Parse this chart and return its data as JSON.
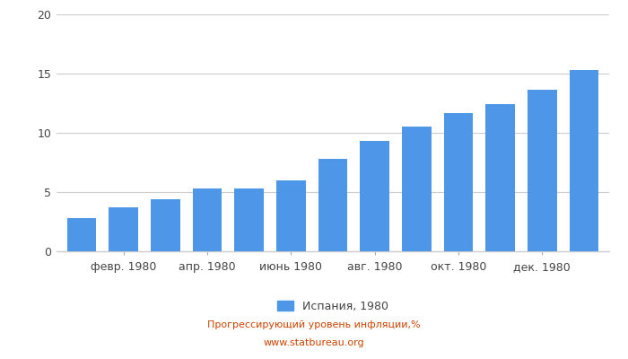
{
  "bar_values": [
    2.8,
    3.7,
    4.4,
    5.3,
    5.3,
    6.0,
    7.8,
    9.3,
    10.5,
    11.7,
    12.4,
    13.6,
    15.3
  ],
  "n_bars": 13,
  "x_tick_labels": [
    "февр. 1980",
    "апр. 1980",
    "июнь 1980",
    "авг. 1980",
    "окт. 1980",
    "дек. 1980"
  ],
  "x_tick_positions": [
    1,
    3,
    5,
    7,
    9,
    11
  ],
  "bar_color": "#4d96e8",
  "ylim": [
    0,
    20
  ],
  "yticks": [
    0,
    5,
    10,
    15,
    20
  ],
  "legend_label": "Испания, 1980",
  "footer_line1": "Прогрессирующий уровень инфляции,%",
  "footer_line2": "www.statbureau.org",
  "grid_color": "#cccccc",
  "background_color": "#ffffff"
}
